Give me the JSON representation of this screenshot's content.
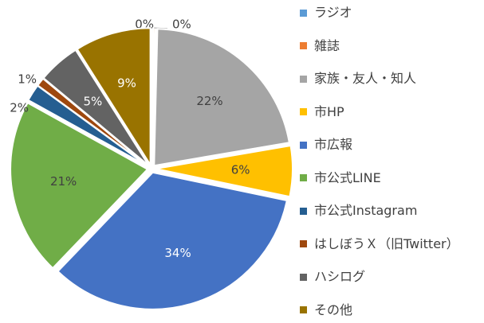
{
  "chart_data": {
    "type": "pie",
    "series": [
      {
        "name": "",
        "slices": [
          {
            "label": "ラジオ",
            "value": 0,
            "display": "0%",
            "color": "#5B9BD5"
          },
          {
            "label": "雑誌",
            "value": 0,
            "display": "0%",
            "color": "#ED7D31"
          },
          {
            "label": "家族・友人・知人",
            "value": 22,
            "display": "22%",
            "color": "#A5A5A5"
          },
          {
            "label": "市HP",
            "value": 6,
            "display": "6%",
            "color": "#FFC000"
          },
          {
            "label": "市広報",
            "value": 34,
            "display": "34%",
            "color": "#4472C4"
          },
          {
            "label": "市公式LINE",
            "value": 21,
            "display": "21%",
            "color": "#70AD47"
          },
          {
            "label": "市公式Instagram",
            "value": 2,
            "display": "2%",
            "color": "#255E91"
          },
          {
            "label": "はしぼうＸ（旧Twitter）",
            "value": 1,
            "display": "1%",
            "color": "#9E480E"
          },
          {
            "label": "ハシログ",
            "value": 5,
            "display": "5%",
            "color": "#636363"
          },
          {
            "label": "その他",
            "value": 9,
            "display": "9%",
            "color": "#997300"
          }
        ]
      }
    ],
    "legend_position": "right"
  }
}
